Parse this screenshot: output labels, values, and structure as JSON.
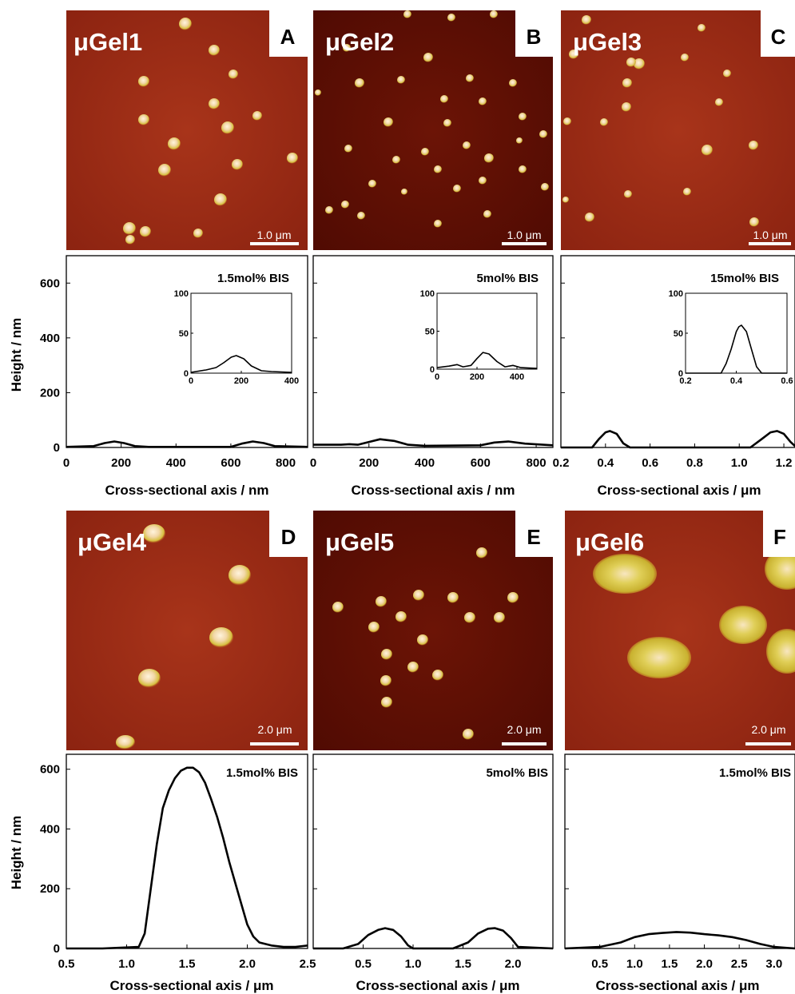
{
  "figure": {
    "panels": [
      {
        "letter": "A",
        "name": "μGel1",
        "scale_label": "1.0 μm",
        "bis_label": "1.5mol% BIS"
      },
      {
        "letter": "B",
        "name": "μGel2",
        "scale_label": "1.0 μm",
        "bis_label": "5mol% BIS"
      },
      {
        "letter": "C",
        "name": "μGel3",
        "scale_label": "1.0 μm",
        "bis_label": "15mol% BIS"
      },
      {
        "letter": "D",
        "name": "μGel4",
        "scale_label": "2.0 μm",
        "bis_label": "1.5mol% BIS"
      },
      {
        "letter": "E",
        "name": "μGel5",
        "scale_label": "2.0 μm",
        "bis_label": "5mol% BIS"
      },
      {
        "letter": "F",
        "name": "μGel6",
        "scale_label": "2.0 μm",
        "bis_label": "1.5mol% BIS"
      }
    ],
    "colors": {
      "afm_dark": "#5a0c04",
      "afm_base": "#9c2a10",
      "particle_core": "#f6dfb0",
      "particle_edge": "#d8c040",
      "curve": "#000000"
    }
  },
  "chart_data": [
    {
      "type": "line",
      "bis_label": "1.5mol% BIS",
      "ylabel": "Height / nm",
      "xlabel": "Cross-sectional axis / nm",
      "xlim": [
        0,
        880
      ],
      "ylim": [
        0,
        700
      ],
      "xticks": [
        0,
        200,
        400,
        600,
        800
      ],
      "yticks": [
        0,
        200,
        400,
        600
      ],
      "series": [
        {
          "x": [
            0,
            100,
            140,
            175,
            210,
            250,
            300,
            600,
            640,
            680,
            720,
            760,
            880
          ],
          "y": [
            2,
            5,
            16,
            22,
            16,
            5,
            2,
            2,
            14,
            22,
            16,
            5,
            2
          ]
        }
      ],
      "inset": {
        "xlim": [
          0,
          400
        ],
        "ylim": [
          0,
          100
        ],
        "xticks": [
          0,
          200,
          400
        ],
        "yticks": [
          0,
          50,
          100
        ],
        "series": [
          {
            "x": [
              0,
              60,
              100,
              130,
              160,
              180,
              210,
              240,
              280,
              320,
              400
            ],
            "y": [
              1,
              4,
              7,
              13,
              20,
              22,
              18,
              9,
              3,
              2,
              1
            ]
          }
        ]
      }
    },
    {
      "type": "line",
      "bis_label": "5mol% BIS",
      "xlabel": "Cross-sectional axis / nm",
      "xlim": [
        0,
        860
      ],
      "ylim": [
        0,
        700
      ],
      "xticks": [
        0,
        200,
        400,
        600,
        800
      ],
      "yticks": [
        0,
        200,
        400,
        600
      ],
      "series": [
        {
          "x": [
            0,
            100,
            130,
            160,
            200,
            240,
            290,
            340,
            400,
            600,
            650,
            700,
            760,
            860
          ],
          "y": [
            10,
            10,
            12,
            10,
            20,
            30,
            24,
            10,
            6,
            8,
            18,
            22,
            14,
            8
          ]
        }
      ],
      "inset": {
        "xlim": [
          0,
          500
        ],
        "ylim": [
          0,
          100
        ],
        "xticks": [
          0,
          200,
          400
        ],
        "yticks": [
          0,
          50,
          100
        ],
        "series": [
          {
            "x": [
              0,
              60,
              100,
              130,
              170,
              200,
              230,
              260,
              300,
              340,
              380,
              420,
              500
            ],
            "y": [
              2,
              4,
              6,
              3,
              5,
              14,
              22,
              20,
              10,
              3,
              5,
              2,
              1
            ]
          }
        ]
      }
    },
    {
      "type": "line",
      "bis_label": "15mol% BIS",
      "xlabel": "Cross-sectional axis /  μm",
      "xlim": [
        0.2,
        1.25
      ],
      "ylim": [
        0,
        700
      ],
      "xticks": [
        0.2,
        0.4,
        0.6,
        0.8,
        1.0,
        1.2
      ],
      "xticklabels": [
        "0.2",
        "0.4",
        "0.6",
        "0.8",
        "1.0",
        "1.2"
      ],
      "yticks": [
        0,
        200,
        400,
        600
      ],
      "series": [
        {
          "x": [
            0.2,
            0.34,
            0.37,
            0.4,
            0.42,
            0.45,
            0.48,
            0.51,
            1.05,
            1.1,
            1.14,
            1.17,
            1.2,
            1.23,
            1.25
          ],
          "y": [
            0,
            0,
            30,
            55,
            60,
            50,
            15,
            0,
            0,
            30,
            55,
            60,
            50,
            20,
            5
          ]
        }
      ],
      "inset": {
        "xlim": [
          0.2,
          0.6
        ],
        "ylim": [
          0,
          100
        ],
        "xticks": [
          0.2,
          0.4,
          0.6
        ],
        "xticklabels": [
          "0.2",
          "0.4",
          "0.6"
        ],
        "yticks": [
          0,
          50,
          100
        ],
        "series": [
          {
            "x": [
              0.2,
              0.34,
              0.36,
              0.38,
              0.4,
              0.41,
              0.42,
              0.44,
              0.46,
              0.48,
              0.5,
              0.6
            ],
            "y": [
              0,
              0,
              12,
              30,
              52,
              58,
              60,
              52,
              30,
              8,
              0,
              0
            ]
          }
        ]
      }
    },
    {
      "type": "line",
      "bis_label": "1.5mol% BIS",
      "ylabel": "Height / nm",
      "xlabel": "Cross-sectional axis /  μm",
      "xlim": [
        0.5,
        2.5
      ],
      "ylim": [
        0,
        650
      ],
      "xticks": [
        0.5,
        1.0,
        1.5,
        2.0,
        2.5
      ],
      "xticklabels": [
        "0.5",
        "1.0",
        "1.5",
        "2.0",
        "2.5"
      ],
      "yticks": [
        0,
        200,
        400,
        600
      ],
      "series": [
        {
          "x": [
            0.5,
            0.8,
            1.1,
            1.15,
            1.2,
            1.25,
            1.3,
            1.35,
            1.4,
            1.45,
            1.5,
            1.55,
            1.6,
            1.65,
            1.7,
            1.75,
            1.8,
            1.85,
            1.9,
            1.95,
            2.0,
            2.05,
            2.1,
            2.2,
            2.3,
            2.4,
            2.5
          ],
          "y": [
            0,
            0,
            5,
            50,
            200,
            350,
            470,
            530,
            570,
            595,
            605,
            605,
            590,
            555,
            500,
            440,
            370,
            290,
            220,
            150,
            80,
            40,
            20,
            10,
            5,
            5,
            10
          ]
        }
      ]
    },
    {
      "type": "line",
      "bis_label": "5mol% BIS",
      "xlabel": "Cross-sectional axis /  μm",
      "xlim": [
        0.0,
        2.4
      ],
      "ylim": [
        0,
        650
      ],
      "xticks": [
        0.5,
        1.0,
        1.5,
        2.0
      ],
      "xticklabels": [
        "0.5",
        "1.0",
        "1.5",
        "2.0"
      ],
      "yticks": [
        0,
        200,
        400,
        600
      ],
      "series": [
        {
          "x": [
            0.0,
            0.3,
            0.45,
            0.55,
            0.65,
            0.72,
            0.8,
            0.88,
            0.95,
            1.0,
            1.4,
            1.55,
            1.65,
            1.75,
            1.82,
            1.9,
            1.98,
            2.05,
            2.4
          ],
          "y": [
            0,
            0,
            15,
            45,
            62,
            68,
            62,
            40,
            10,
            0,
            0,
            20,
            50,
            66,
            68,
            60,
            35,
            5,
            0
          ]
        }
      ]
    },
    {
      "type": "line",
      "bis_label": "1.5mol% BIS",
      "xlabel": "Cross-sectional axis /  μm",
      "xlim": [
        0.0,
        3.3
      ],
      "ylim": [
        0,
        650
      ],
      "xticks": [
        0.5,
        1.0,
        1.5,
        2.0,
        2.5,
        3.0
      ],
      "xticklabels": [
        "0.5",
        "1.0",
        "1.5",
        "2.0",
        "2.5",
        "3.0"
      ],
      "yticks": [
        0,
        200,
        400,
        600
      ],
      "series": [
        {
          "x": [
            0.0,
            0.5,
            0.8,
            1.0,
            1.2,
            1.4,
            1.6,
            1.8,
            2.0,
            2.2,
            2.4,
            2.6,
            2.8,
            3.0,
            3.3
          ],
          "y": [
            0,
            5,
            20,
            38,
            48,
            52,
            55,
            53,
            48,
            44,
            38,
            28,
            15,
            5,
            0
          ]
        }
      ]
    }
  ]
}
